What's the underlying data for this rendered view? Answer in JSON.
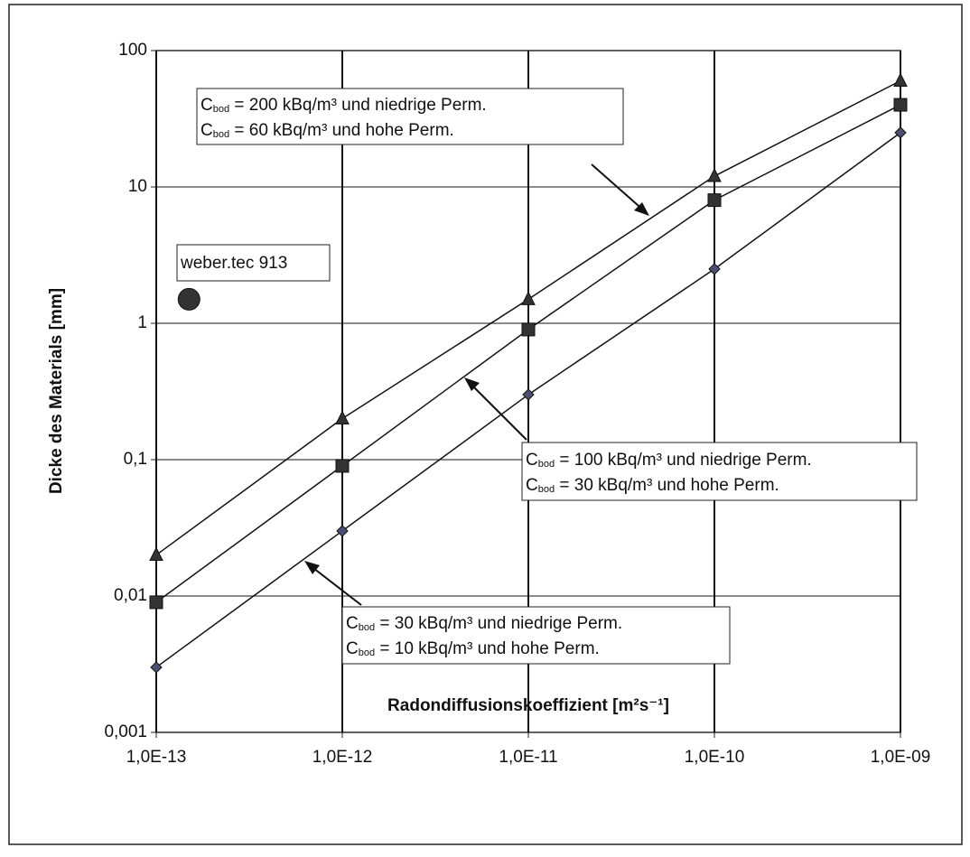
{
  "chart_data": {
    "type": "line",
    "x": [
      1e-13,
      1e-12,
      1e-11,
      1e-10,
      1e-09
    ],
    "series": [
      {
        "marker": "triangle",
        "color": "#333333",
        "values": [
          0.02,
          0.2,
          1.5,
          12,
          60
        ]
      },
      {
        "marker": "square",
        "color": "#333333",
        "values": [
          0.009,
          0.09,
          0.9,
          8,
          40
        ]
      },
      {
        "marker": "diamond",
        "color": "#4e4e70",
        "values": [
          0.003,
          0.03,
          0.3,
          2.5,
          25
        ]
      }
    ],
    "point": {
      "x": 1.5e-13,
      "y": 1.5,
      "color": "#333333",
      "label": "weber.tec 913"
    },
    "xlabel": "Radondiffusionskoeffizient [m²s⁻¹]",
    "ylabel": "Dicke des Materials [mm]",
    "xlog": true,
    "ylog": true,
    "grid": true,
    "xlim": [
      1e-13,
      1e-09
    ],
    "xticks": [
      {
        "value": 1e-13,
        "label": "1,0E-13"
      },
      {
        "value": 1e-12,
        "label": "1,0E-12"
      },
      {
        "value": 1e-11,
        "label": "1,0E-11"
      },
      {
        "value": 1e-10,
        "label": "1,0E-10"
      },
      {
        "value": 1e-09,
        "label": "1,0E-09"
      }
    ],
    "ylim": [
      0.001,
      100
    ],
    "yticks": [
      {
        "value": 0.001,
        "label": "0,001"
      },
      {
        "value": 0.01,
        "label": "0,01"
      },
      {
        "value": 0.1,
        "label": "0,1"
      },
      1,
      10,
      100
    ],
    "annotations": [
      [
        {
          "c": "C",
          "sub": "bod",
          "text": " = 200 kBq/m³ und niedrige Perm."
        },
        {
          "c": "C",
          "sub": "bod",
          "text": " = 60 kBq/m³ und hohe Perm."
        }
      ],
      [
        {
          "c": "C",
          "sub": "bod",
          "text": " = 100 kBq/m³ und niedrige Perm."
        },
        {
          "c": "C",
          "sub": "bod",
          "text": " = 30 kBq/m³ und hohe Perm."
        }
      ],
      [
        {
          "c": "C",
          "sub": "bod",
          "text": " = 30 kBq/m³ und niedrige Perm."
        },
        {
          "c": "C",
          "sub": "bod",
          "text": " = 10 kBq/m³ und hohe Perm."
        }
      ]
    ]
  }
}
